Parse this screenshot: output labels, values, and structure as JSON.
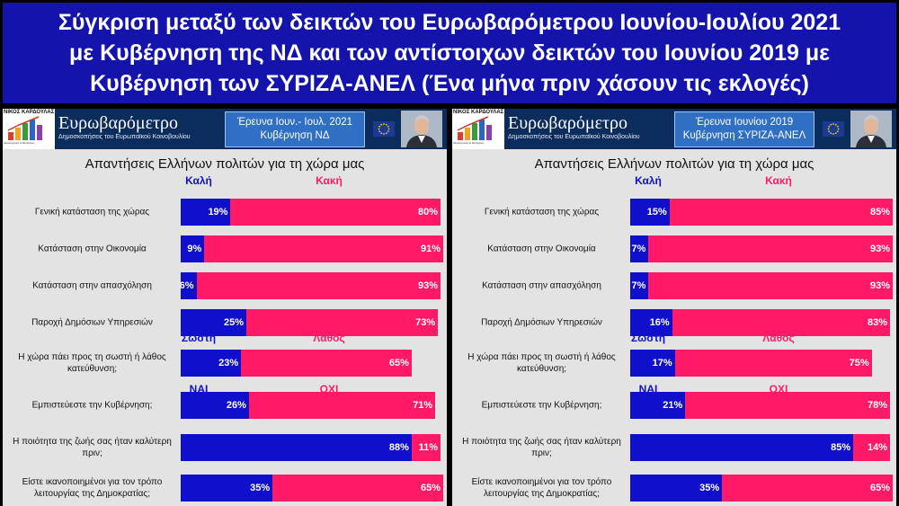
{
  "title_lines": [
    "Σύγκριση μεταξύ των δεικτών του Ευρωβαρόμετρου Ιουνίου-Ιουλίου 2021",
    "με Κυβέρνηση της ΝΔ και των αντίστοιχων δεικτών του Ιουνίου 2019 με",
    "Κυβέρνηση των ΣΥΡΙΖΑ-ΑΝΕΛ (Ένα μήνα πριν χάσουν τις εκλογές)"
  ],
  "banner": {
    "logo_name": "ΝΙΚΟΣ ΚΑΡΔΟΥΛΑΣ",
    "logo_sub": "Αξιολογήσεις & Μετρήσεις",
    "brand_title": "Ευρωβαρόμετρο",
    "brand_sub": "Δημοσκοπήσεις του Ευρωπαϊκού Κοινοβουλίου"
  },
  "chart_data": [
    {
      "type": "bar",
      "panel": "left",
      "survey_line1": "Έρευνα Ιουν.- Ιουλ. 2021",
      "survey_line2": "Κυβέρνηση ΝΔ",
      "title": "Απαντήσεις Ελλήνων πολιτών για τη χώρα μας",
      "groups": [
        {
          "label_good": "Καλή",
          "label_bad": "Κακή",
          "questions": [
            {
              "label": "Γενική κατάσταση της χώρας",
              "good": 19,
              "bad": 80
            },
            {
              "label": "Κατάσταση στην Οικονομία",
              "good": 9,
              "bad": 91
            },
            {
              "label": "Κατάσταση στην απασχόληση",
              "good": 6,
              "bad": 93
            },
            {
              "label": "Παροχή Δημόσιων Υπηρεσιών",
              "good": 25,
              "bad": 73
            }
          ]
        },
        {
          "label_good": "Σωστή",
          "label_bad": "Λάθος",
          "questions": [
            {
              "label": "Η χώρα πάει προς τη σωστή ή λάθος κατεύθυνση;",
              "good": 23,
              "bad": 65
            }
          ]
        },
        {
          "label_good": "ΝΑΙ",
          "label_bad": "ΟΧΙ",
          "questions": [
            {
              "label": "Εμπιστεύεστε την Κυβέρνηση;",
              "good": 26,
              "bad": 71
            },
            {
              "label": "Η ποιότητα της ζωής σας ήταν καλύτερη πριν;",
              "good": 88,
              "bad": 11
            },
            {
              "label": "Είστε ικανοποιημένοι για τον τρόπο λειτουργίας της Δημοκρατίας;",
              "good": 35,
              "bad": 65
            }
          ]
        }
      ]
    },
    {
      "type": "bar",
      "panel": "right",
      "survey_line1": "Έρευνα Ιουνίου 2019",
      "survey_line2": "Κυβέρνηση ΣΥΡΙΖΑ-ΑΝΕΛ",
      "title": "Απαντήσεις Ελλήνων πολιτών για τη χώρα μας",
      "groups": [
        {
          "label_good": "Καλή",
          "label_bad": "Κακή",
          "questions": [
            {
              "label": "Γενική κατάσταση της χώρας",
              "good": 15,
              "bad": 85
            },
            {
              "label": "Κατάσταση στην Οικονομία",
              "good": 7,
              "bad": 93
            },
            {
              "label": "Κατάσταση στην απασχόληση",
              "good": 7,
              "bad": 93
            },
            {
              "label": "Παροχή Δημόσιων Υπηρεσιών",
              "good": 16,
              "bad": 83
            }
          ]
        },
        {
          "label_good": "Σωστή",
          "label_bad": "Λάθος",
          "questions": [
            {
              "label": "Η χώρα πάει προς τη σωστή ή λάθος κατεύθυνση;",
              "good": 17,
              "bad": 75
            }
          ]
        },
        {
          "label_good": "ΝΑΙ",
          "label_bad": "ΟΧΙ",
          "questions": [
            {
              "label": "Εμπιστεύεστε την Κυβέρνηση;",
              "good": 21,
              "bad": 78
            },
            {
              "label": "Η ποιότητα της ζωής σας ήταν καλύτερη πριν;",
              "good": 85,
              "bad": 14
            },
            {
              "label": "Είστε ικανοποιημένοι για τον τρόπο λειτουργίας της Δημοκρατίας;",
              "good": 35,
              "bad": 65
            }
          ]
        }
      ]
    }
  ],
  "colors": {
    "good": "#1010cc",
    "bad": "#ff1966",
    "title_bg": "#1414ad"
  }
}
